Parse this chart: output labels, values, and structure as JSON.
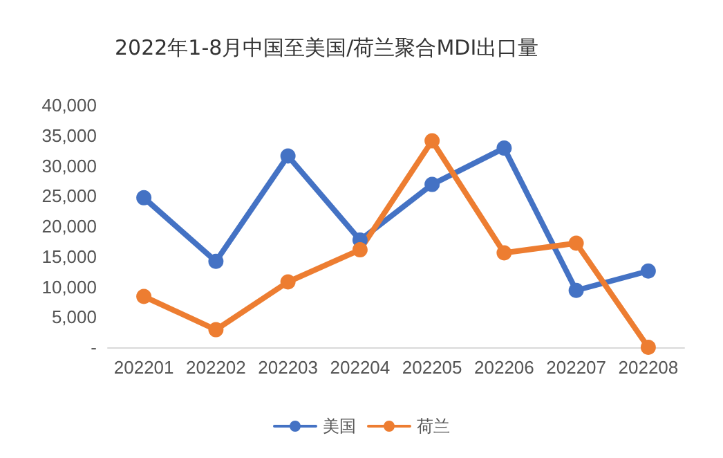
{
  "chart_data": {
    "type": "line",
    "title": "2022年1-8月中国至美国/荷兰聚合MDI出口量",
    "categories": [
      "202201",
      "202202",
      "202203",
      "202204",
      "202205",
      "202206",
      "202207",
      "202208"
    ],
    "series": [
      {
        "name": "美国",
        "color": "#4472c4",
        "values": [
          24700,
          14200,
          31600,
          17700,
          26900,
          32900,
          9400,
          12600
        ]
      },
      {
        "name": "荷兰",
        "color": "#ed7d31",
        "values": [
          8400,
          2900,
          10800,
          16100,
          34100,
          15600,
          17200,
          0
        ]
      }
    ],
    "ylim": [
      0,
      40000
    ],
    "yticks": [
      {
        "value": 0,
        "label": "-"
      },
      {
        "value": 5000,
        "label": "5,000"
      },
      {
        "value": 10000,
        "label": "10,000"
      },
      {
        "value": 15000,
        "label": "15,000"
      },
      {
        "value": 20000,
        "label": "20,000"
      },
      {
        "value": 25000,
        "label": "25,000"
      },
      {
        "value": 30000,
        "label": "30,000"
      },
      {
        "value": 35000,
        "label": "35,000"
      },
      {
        "value": 40000,
        "label": "40,000"
      }
    ],
    "grid": false,
    "legend": "bottom",
    "marker": "circle",
    "line_style": "solid"
  }
}
